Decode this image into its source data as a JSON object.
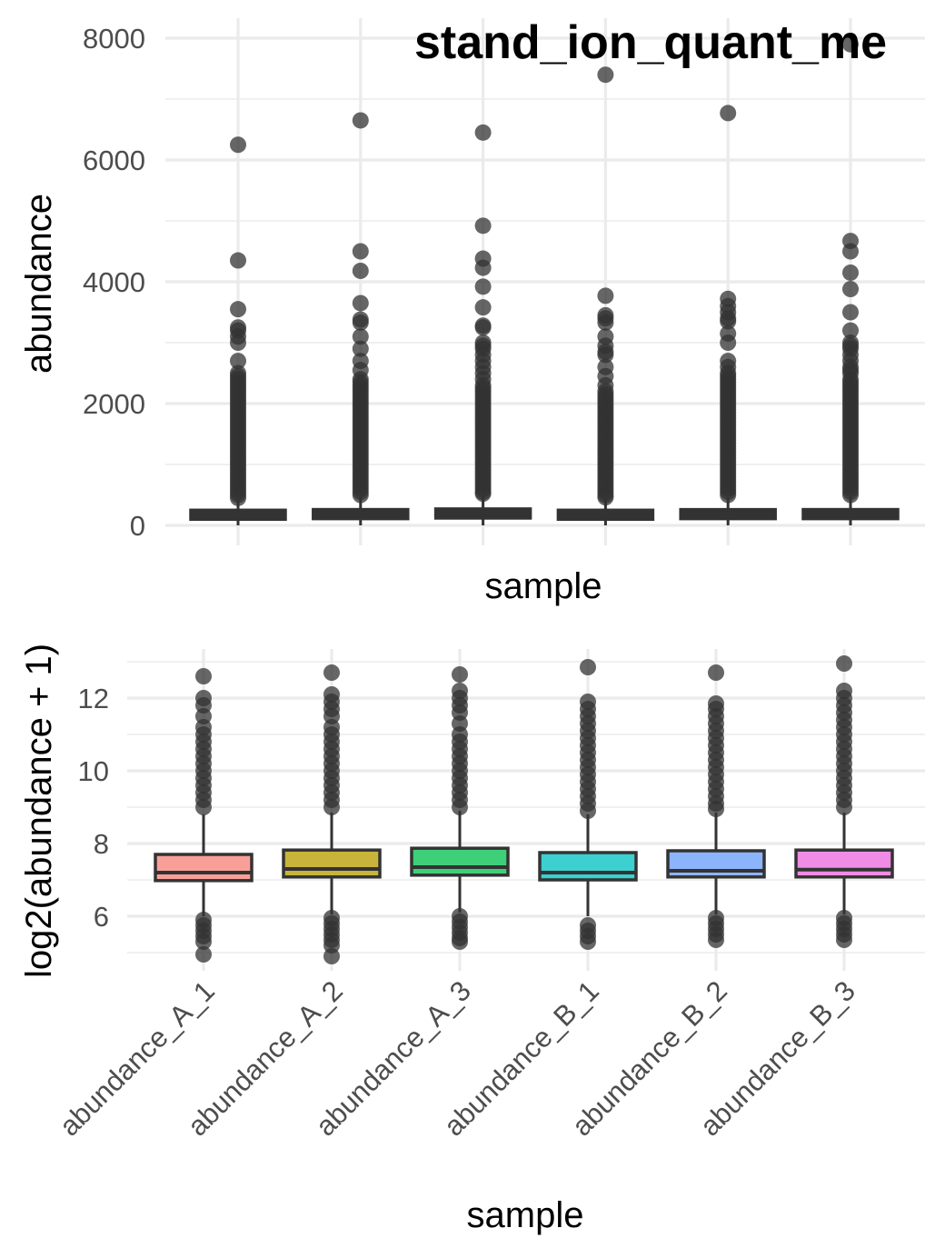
{
  "chart_data": [
    {
      "type": "boxplot",
      "title": "stand_ion_quant_me",
      "xlabel": "sample",
      "ylabel": "abundance",
      "categories": [
        "abundance_A_1",
        "abundance_A_2",
        "abundance_A_3",
        "abundance_B_1",
        "abundance_B_2",
        "abundance_B_3"
      ],
      "show_x_tick_labels": false,
      "ylim": [
        0,
        8000
      ],
      "yticks": [
        0,
        2000,
        4000,
        6000,
        8000
      ],
      "grid": true,
      "boxes": [
        {
          "q1": 100,
          "median": 150,
          "q3": 230,
          "whisker_low": 0,
          "whisker_high": 430,
          "outliers": [
            6250,
            4350,
            3550,
            3250,
            3200,
            3100,
            3000,
            2700,
            2500,
            2450,
            2400,
            2350,
            2300,
            2250,
            2200,
            2150,
            2100,
            2050,
            2000,
            1950,
            1900,
            1850,
            1800,
            1750,
            1700,
            1650,
            1600,
            1550,
            1500,
            1450,
            1400,
            1350,
            1300,
            1250,
            1200,
            1150,
            1100,
            1050,
            1000,
            950,
            900,
            850,
            800,
            750,
            700,
            650,
            600,
            550,
            500,
            450
          ]
        },
        {
          "q1": 110,
          "median": 170,
          "q3": 260,
          "whisker_low": 0,
          "whisker_high": 470,
          "outliers": [
            6650,
            4500,
            4180,
            3650,
            3380,
            3330,
            3100,
            2900,
            2700,
            2550,
            2400,
            2350,
            2300,
            2250,
            2200,
            2150,
            2100,
            2050,
            2000,
            1950,
            1900,
            1850,
            1800,
            1750,
            1700,
            1650,
            1600,
            1550,
            1500,
            1450,
            1400,
            1350,
            1300,
            1250,
            1200,
            1150,
            1100,
            1050,
            1000,
            950,
            900,
            850,
            800,
            750,
            700,
            650,
            600,
            550,
            500
          ]
        },
        {
          "q1": 120,
          "median": 180,
          "q3": 270,
          "whisker_low": 0,
          "whisker_high": 490,
          "outliers": [
            6450,
            4920,
            4380,
            4230,
            3920,
            3580,
            3280,
            3250,
            3000,
            2950,
            2900,
            2800,
            2700,
            2600,
            2500,
            2400,
            2300,
            2250,
            2200,
            2150,
            2100,
            2050,
            2000,
            1950,
            1900,
            1850,
            1800,
            1750,
            1700,
            1650,
            1600,
            1550,
            1500,
            1450,
            1400,
            1350,
            1300,
            1250,
            1200,
            1150,
            1100,
            1050,
            1000,
            950,
            900,
            850,
            800,
            750,
            700,
            650,
            600,
            550,
            520
          ]
        },
        {
          "q1": 100,
          "median": 160,
          "q3": 240,
          "whisker_low": 0,
          "whisker_high": 440,
          "outliers": [
            7400,
            3770,
            3450,
            3400,
            3330,
            3100,
            2950,
            2850,
            2800,
            2600,
            2450,
            2300,
            2200,
            2150,
            2100,
            2050,
            2000,
            1950,
            1900,
            1850,
            1800,
            1750,
            1700,
            1650,
            1600,
            1550,
            1500,
            1450,
            1400,
            1350,
            1300,
            1250,
            1200,
            1150,
            1100,
            1050,
            1000,
            950,
            900,
            850,
            800,
            750,
            700,
            650,
            600,
            550,
            500,
            460
          ]
        },
        {
          "q1": 110,
          "median": 165,
          "q3": 250,
          "whisker_low": 0,
          "whisker_high": 460,
          "outliers": [
            6770,
            3720,
            3600,
            3500,
            3400,
            3350,
            3150,
            3000,
            2700,
            2600,
            2500,
            2450,
            2400,
            2350,
            2300,
            2250,
            2200,
            2150,
            2100,
            2050,
            2000,
            1950,
            1900,
            1850,
            1800,
            1750,
            1700,
            1650,
            1600,
            1550,
            1500,
            1450,
            1400,
            1350,
            1300,
            1250,
            1200,
            1150,
            1100,
            1050,
            1000,
            950,
            900,
            850,
            800,
            750,
            700,
            650,
            600,
            550,
            500
          ]
        },
        {
          "q1": 110,
          "median": 170,
          "q3": 260,
          "whisker_low": 0,
          "whisker_high": 470,
          "outliers": [
            7900,
            4670,
            4500,
            4150,
            3880,
            3500,
            3200,
            3000,
            2950,
            2900,
            2800,
            2700,
            2600,
            2550,
            2500,
            2400,
            2350,
            2300,
            2250,
            2200,
            2150,
            2100,
            2050,
            2000,
            1950,
            1900,
            1850,
            1800,
            1750,
            1700,
            1650,
            1600,
            1550,
            1500,
            1450,
            1400,
            1350,
            1300,
            1250,
            1200,
            1150,
            1100,
            1050,
            1000,
            950,
            900,
            850,
            800,
            750,
            700,
            650,
            600,
            550,
            500
          ]
        }
      ]
    },
    {
      "type": "boxplot",
      "title": "",
      "xlabel": "sample",
      "ylabel": "log2(abundance + 1)",
      "categories": [
        "abundance_A_1",
        "abundance_A_2",
        "abundance_A_3",
        "abundance_B_1",
        "abundance_B_2",
        "abundance_B_3"
      ],
      "show_x_tick_labels": true,
      "ylim": [
        4.9,
        13.1
      ],
      "yticks": [
        6,
        8,
        10,
        12
      ],
      "grid": true,
      "colors": [
        "#f8a098",
        "#c8b43a",
        "#3ed078",
        "#3cd0d0",
        "#8cb4fa",
        "#f08ce6"
      ],
      "boxes": [
        {
          "q1": 6.98,
          "median": 7.2,
          "q3": 7.7,
          "whisker_low": 6.0,
          "whisker_high": 8.8,
          "outliers": [
            12.6,
            12.0,
            11.8,
            11.5,
            11.2,
            11.0,
            10.8,
            10.6,
            10.4,
            10.2,
            10.0,
            9.8,
            9.6,
            9.4,
            9.2,
            9.0,
            5.9,
            5.75,
            5.6,
            5.45,
            5.3,
            4.95
          ]
        },
        {
          "q1": 7.08,
          "median": 7.3,
          "q3": 7.82,
          "whisker_low": 6.05,
          "whisker_high": 8.85,
          "outliers": [
            12.7,
            12.1,
            11.9,
            11.7,
            11.5,
            11.2,
            11.0,
            10.8,
            10.6,
            10.4,
            10.2,
            10.0,
            9.8,
            9.6,
            9.4,
            9.2,
            9.0,
            5.95,
            5.8,
            5.65,
            5.5,
            5.35,
            5.2,
            4.9
          ]
        },
        {
          "q1": 7.13,
          "median": 7.35,
          "q3": 7.87,
          "whisker_low": 6.1,
          "whisker_high": 8.9,
          "outliers": [
            12.65,
            12.2,
            12.0,
            11.8,
            11.6,
            11.3,
            11.0,
            10.8,
            10.6,
            10.4,
            10.2,
            10.0,
            9.8,
            9.6,
            9.4,
            9.2,
            9.0,
            6.0,
            5.85,
            5.7,
            5.55,
            5.4,
            5.3
          ]
        },
        {
          "q1": 7.0,
          "median": 7.2,
          "q3": 7.75,
          "whisker_low": 6.0,
          "whisker_high": 8.8,
          "outliers": [
            12.85,
            11.9,
            11.7,
            11.5,
            11.3,
            11.1,
            10.9,
            10.7,
            10.5,
            10.3,
            10.1,
            9.9,
            9.7,
            9.5,
            9.3,
            9.1,
            8.9,
            5.75,
            5.6,
            5.45,
            5.3
          ]
        },
        {
          "q1": 7.08,
          "median": 7.25,
          "q3": 7.8,
          "whisker_low": 6.05,
          "whisker_high": 8.85,
          "outliers": [
            12.7,
            11.85,
            11.7,
            11.5,
            11.3,
            11.1,
            10.9,
            10.7,
            10.5,
            10.3,
            10.1,
            9.9,
            9.7,
            9.5,
            9.3,
            9.1,
            8.95,
            5.95,
            5.8,
            5.65,
            5.5,
            5.35
          ]
        },
        {
          "q1": 7.08,
          "median": 7.28,
          "q3": 7.82,
          "whisker_low": 6.05,
          "whisker_high": 8.85,
          "outliers": [
            12.95,
            12.2,
            12.0,
            11.8,
            11.6,
            11.4,
            11.2,
            11.0,
            10.8,
            10.6,
            10.4,
            10.2,
            10.0,
            9.8,
            9.6,
            9.4,
            9.2,
            9.0,
            5.95,
            5.8,
            5.65,
            5.5,
            5.35
          ]
        }
      ]
    }
  ]
}
